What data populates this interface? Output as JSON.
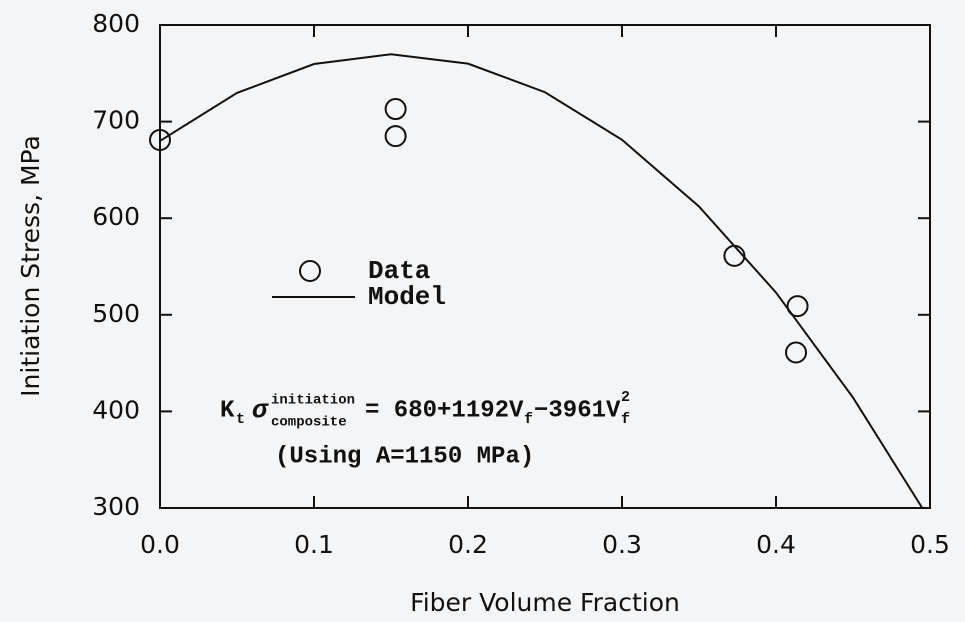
{
  "chart_data": {
    "type": "scatter",
    "x_label": "Fiber Volume Fraction",
    "y_label": "Initiation Stress, MPa",
    "xlim": [
      0,
      0.5
    ],
    "ylim": [
      300,
      800
    ],
    "xticks": [
      {
        "value": 0,
        "label": "0.0"
      },
      0.1,
      0.2,
      0.3,
      0.4,
      0.5
    ],
    "yticks": [
      300,
      400,
      500,
      600,
      700,
      800
    ],
    "series": [
      {
        "name": "Data",
        "color": "#111111",
        "marker": "circle",
        "x": [
          0.0,
          0.153,
          0.153,
          0.373,
          0.414,
          0.413
        ],
        "values": [
          681,
          713,
          685,
          561,
          509,
          461
        ]
      },
      {
        "name": "Model",
        "color": "#111111",
        "marker": "line",
        "x": [
          0,
          0.05,
          0.1,
          0.15,
          0.2,
          0.25,
          0.3,
          0.35,
          0.4,
          0.45,
          0.495
        ],
        "values": [
          680,
          729.7,
          759.6,
          769.7,
          760,
          730.4,
          681.2,
          612.1,
          523,
          414.3,
          300
        ]
      }
    ],
    "annotation": {
      "k": "K",
      "k_sub": "t",
      "sigma": "σ",
      "sup": "initiation",
      "sub": "composite",
      "eq1": "= 680+1192V",
      "f1": "f",
      "eq2": "−3961V",
      "f2": "f",
      "exp": "2",
      "note": "(Using A=1150 MPa)"
    }
  }
}
